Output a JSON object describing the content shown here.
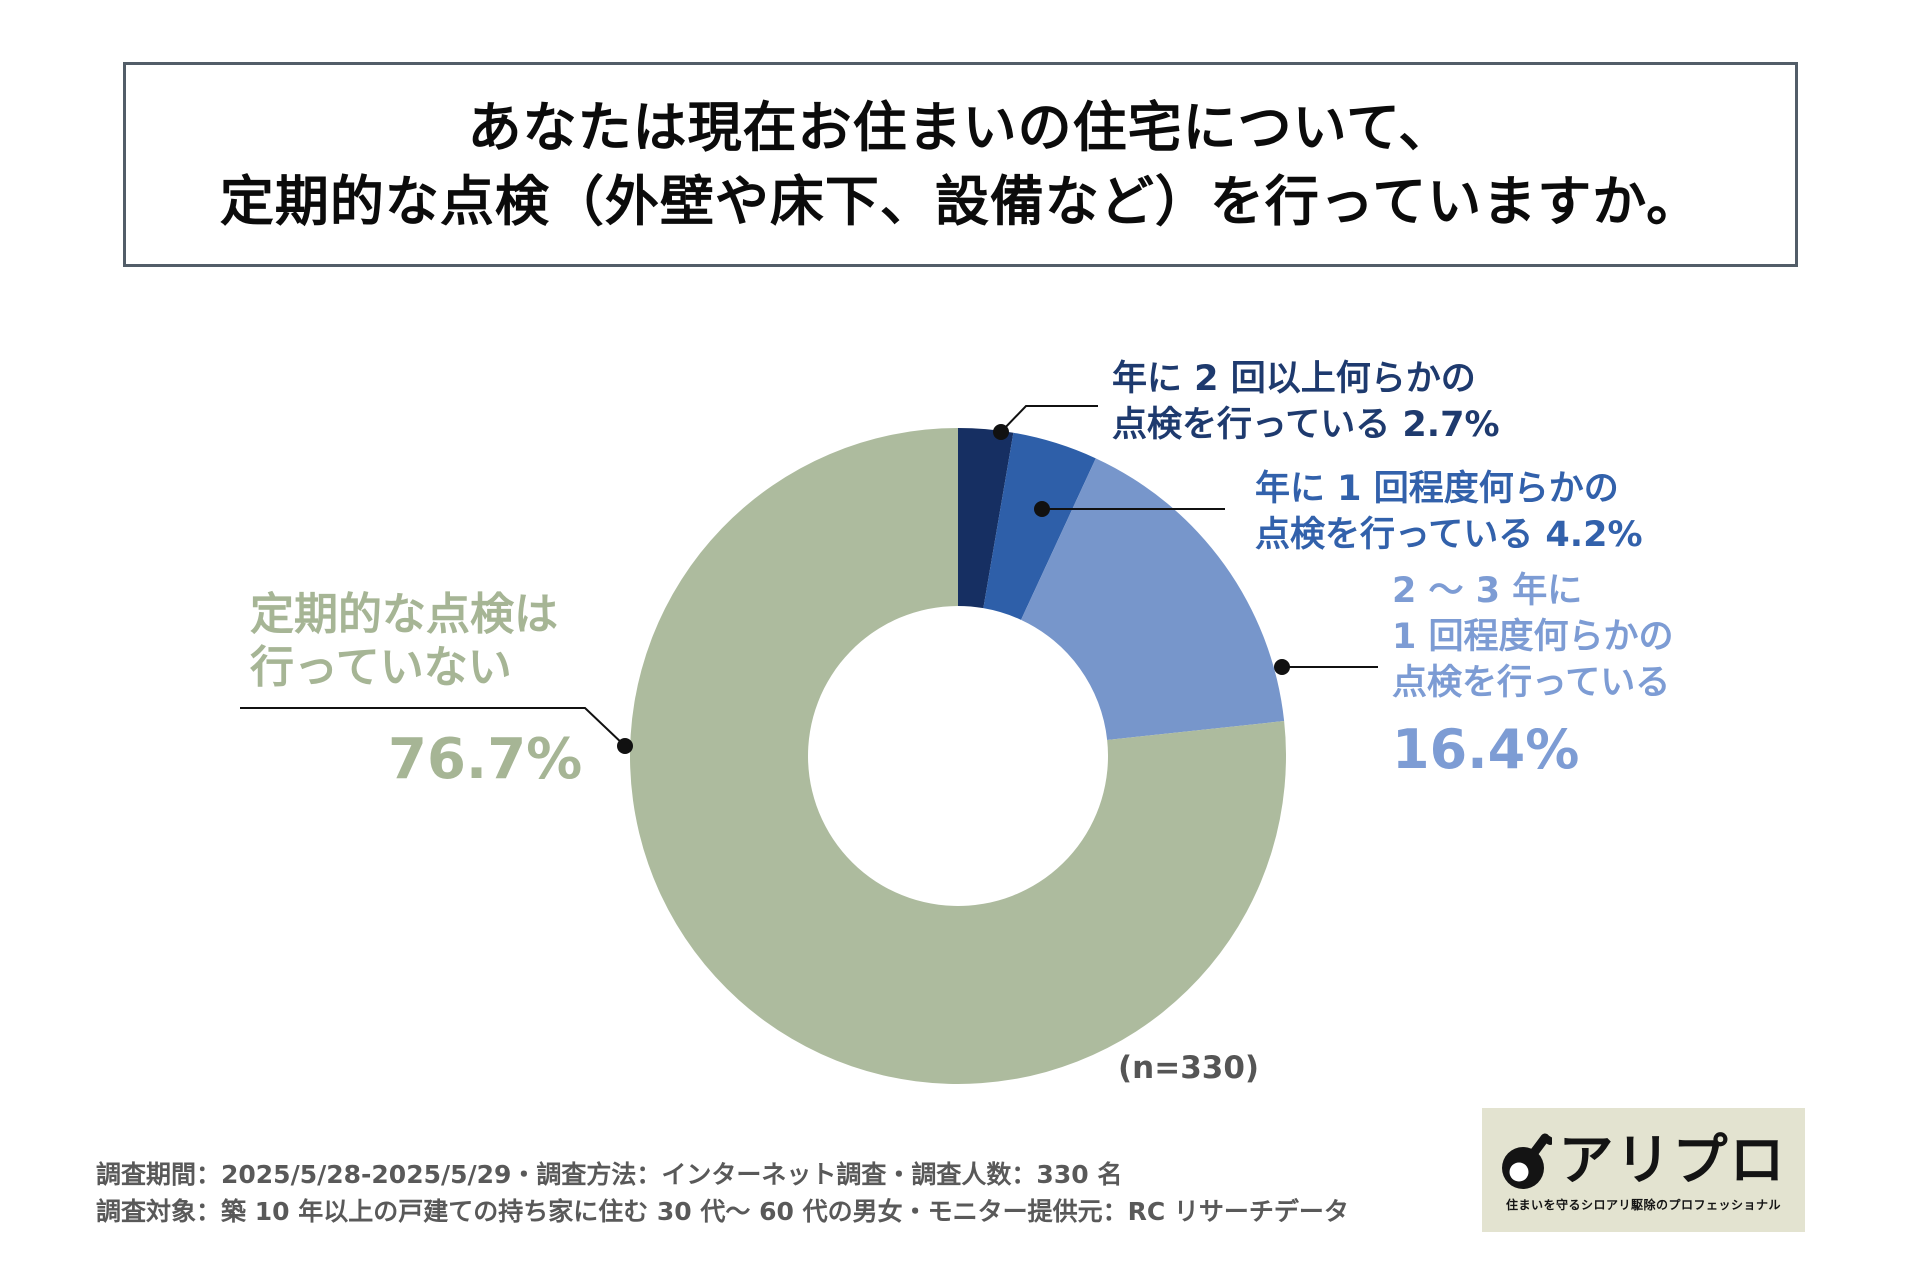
{
  "title": {
    "line1": "あなたは現在お住まいの住宅について、",
    "line2": "定期的な点検（外壁や床下、設備など）を行っていますか。"
  },
  "chart_data": {
    "type": "pie",
    "subtype": "donut",
    "start_angle_deg": 0,
    "direction": "clockwise",
    "donut_hole_ratio": 0.457,
    "sample_size": 330,
    "n_label": "(n=330)",
    "segments": [
      {
        "label": "年に2回以上何らかの点検を行っている",
        "value": 2.7,
        "color": "#162f62"
      },
      {
        "label": "年に1回程度何らかの点検を行っている",
        "value": 4.2,
        "color": "#2e5fa9"
      },
      {
        "label": "2〜3年に1回程度何らかの点検を行っている",
        "value": 16.4,
        "color": "#7796cb"
      },
      {
        "label": "定期的な点検は行っていない",
        "value": 76.7,
        "color": "#adbb9e"
      }
    ]
  },
  "callouts": {
    "c1": {
      "lines": [
        "年に 2 回以上何らかの",
        "点検を行っている 2.7%"
      ],
      "color": "#1e3a6e"
    },
    "c2": {
      "lines": [
        "年に 1 回程度何らかの",
        "点検を行っている  4.2%"
      ],
      "color": "#3261ab"
    },
    "c3": {
      "lines": [
        "2 〜 3 年に",
        "1 回程度何らかの",
        "点検を行っている"
      ],
      "pct": "16.4%",
      "color": "#7d9cd4"
    },
    "c4": {
      "lines": [
        "定期的な点検は",
        "行っていない"
      ],
      "pct": "76.7%",
      "color": "#a6b595"
    }
  },
  "footer": {
    "line1": "調査期間：2025/5/28-2025/5/29・調査方法：インターネット調査・調査人数：330 名",
    "line2": "調査対象：築 10 年以上の戸建ての持ち家に住む 30 代〜 60 代の男女・モニター提供元：RC リサーチデータ"
  },
  "logo": {
    "name": "アリプロ",
    "tagline": "住まいを守るシロアリ駆除のプロフェッショナル",
    "background": "#e3e3d0"
  }
}
